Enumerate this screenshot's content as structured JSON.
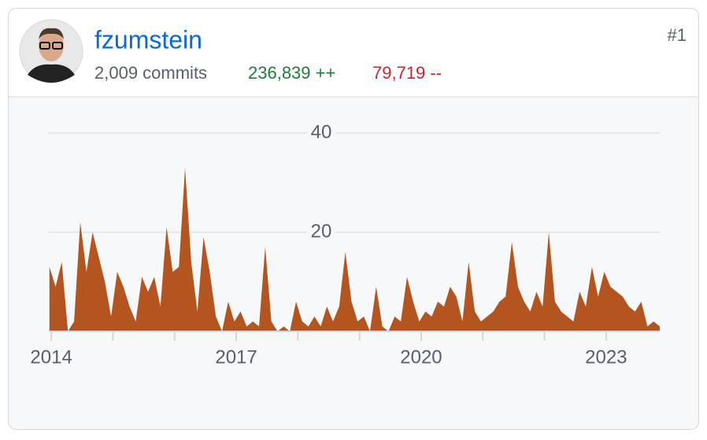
{
  "header": {
    "rank": "#1",
    "username": "fzumstein",
    "commits": "2,009 commits",
    "additions": "236,839 ++",
    "deletions": "79,719 --"
  },
  "chart_data": {
    "type": "area",
    "color": "#b4541f",
    "grid": true,
    "xlim": [
      2013.96,
      2023.87
    ],
    "ylim": [
      0,
      40
    ],
    "xticks": [
      2014,
      2017,
      2020,
      2023
    ],
    "minor_xticks": [
      2015,
      2016,
      2018,
      2019,
      2021,
      2022
    ],
    "yticks": [
      20,
      40
    ],
    "x": [
      2013.97,
      2014.07,
      2014.17,
      2014.27,
      2014.37,
      2014.47,
      2014.57,
      2014.67,
      2014.77,
      2014.87,
      2014.97,
      2015.07,
      2015.17,
      2015.27,
      2015.37,
      2015.47,
      2015.57,
      2015.67,
      2015.77,
      2015.87,
      2015.97,
      2016.07,
      2016.17,
      2016.27,
      2016.37,
      2016.47,
      2016.57,
      2016.67,
      2016.77,
      2016.87,
      2016.97,
      2017.07,
      2017.17,
      2017.27,
      2017.37,
      2017.47,
      2017.57,
      2017.67,
      2017.77,
      2017.87,
      2017.97,
      2018.07,
      2018.17,
      2018.27,
      2018.37,
      2018.47,
      2018.57,
      2018.67,
      2018.77,
      2018.87,
      2018.97,
      2019.07,
      2019.17,
      2019.27,
      2019.37,
      2019.47,
      2019.57,
      2019.67,
      2019.77,
      2019.87,
      2019.97,
      2020.07,
      2020.17,
      2020.27,
      2020.37,
      2020.47,
      2020.57,
      2020.67,
      2020.77,
      2020.87,
      2020.97,
      2021.07,
      2021.17,
      2021.27,
      2021.37,
      2021.47,
      2021.57,
      2021.67,
      2021.77,
      2021.87,
      2021.97,
      2022.07,
      2022.17,
      2022.27,
      2022.37,
      2022.47,
      2022.57,
      2022.67,
      2022.77,
      2022.87,
      2022.97,
      2023.07,
      2023.17,
      2023.27,
      2023.37,
      2023.47,
      2023.57,
      2023.67,
      2023.77,
      2023.87
    ],
    "values": [
      13,
      9,
      14,
      0,
      2,
      22,
      12,
      20,
      15,
      10,
      3,
      12,
      9,
      5,
      2,
      11,
      8,
      11,
      5,
      21,
      12,
      13,
      33,
      14,
      4,
      19,
      12,
      3,
      0,
      6,
      2,
      4,
      1,
      2,
      1,
      17,
      2,
      0,
      1,
      0,
      6,
      2,
      1,
      3,
      1,
      5,
      2,
      5,
      16,
      6,
      2,
      3,
      0,
      9,
      1,
      0,
      3,
      2,
      11,
      6,
      2,
      4,
      3,
      6,
      5,
      9,
      7,
      2,
      14,
      4,
      2,
      3,
      4,
      6,
      7,
      18,
      9,
      6,
      4,
      8,
      5,
      20,
      6,
      4,
      3,
      2,
      8,
      5,
      13,
      7,
      12,
      9,
      8,
      7,
      5,
      4,
      6,
      1,
      2,
      1
    ]
  }
}
